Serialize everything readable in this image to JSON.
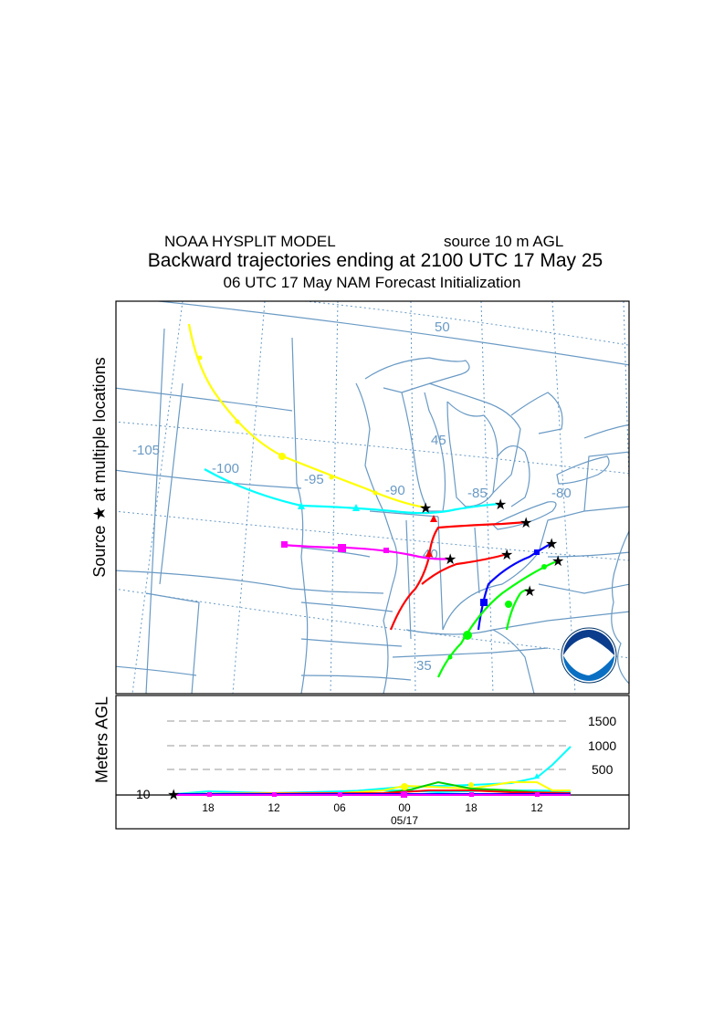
{
  "header": {
    "model": "NOAA HYSPLIT MODEL",
    "source": "source 10 m AGL",
    "title": "Backward trajectories ending at 2100 UTC 17 May 25",
    "subtitle": "06 UTC 17 May    NAM   Forecast Initialization"
  },
  "side_label": "Source ★  at multiple locations",
  "map": {
    "lon_labels": [
      "-105",
      "-100",
      "-95",
      "-90",
      "-85",
      "-80"
    ],
    "lat_labels": [
      "50",
      "45",
      "40",
      "35"
    ]
  },
  "height_panel": {
    "ylabel": "Meters AGL",
    "y_ticks": [
      "1500",
      "1000",
      "500"
    ],
    "base_label": "10",
    "x_ticks": [
      "18",
      "12",
      "06",
      "00",
      "18",
      "12"
    ],
    "date_label": "05/17"
  },
  "logo_text": "noaa",
  "colors": {
    "yellow": "#ffff00",
    "cyan": "#00ffff",
    "red": "#ff0000",
    "magenta": "#ff00ff",
    "blue": "#0000ff",
    "green": "#00ff00",
    "geo": "#6a9ac4"
  }
}
